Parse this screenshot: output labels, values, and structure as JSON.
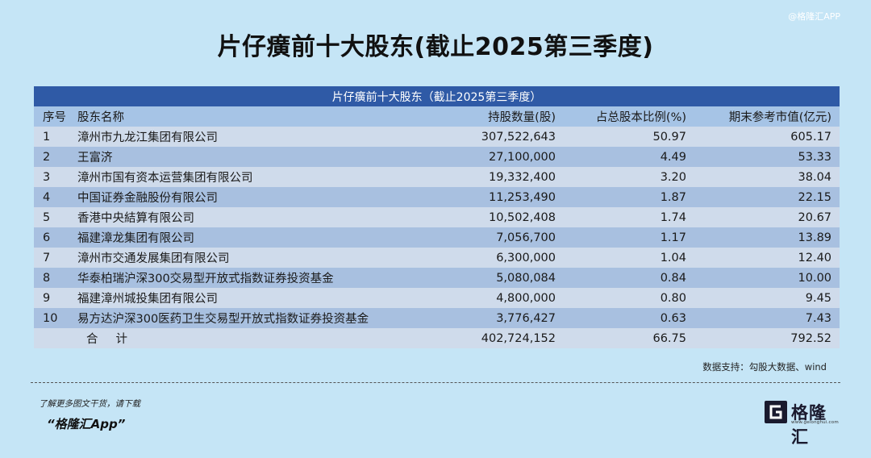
{
  "watermark": "@格隆汇APP",
  "title": "片仔癀前十大股东(截止2025第三季度)",
  "table": {
    "caption": "片仔癀前十大股东（截止2025第三季度）",
    "headers": [
      "序号",
      "股东名称",
      "持股数量(股)",
      "占总股本比例(%)",
      "期末参考市值(亿元)"
    ],
    "rows": [
      {
        "idx": "1",
        "name": "漳州市九龙江集团有限公司",
        "shares": "307,522,643",
        "ratio": "50.97",
        "value": "605.17"
      },
      {
        "idx": "2",
        "name": "王富济",
        "shares": "27,100,000",
        "ratio": "4.49",
        "value": "53.33"
      },
      {
        "idx": "3",
        "name": "漳州市国有资本运营集团有限公司",
        "shares": "19,332,400",
        "ratio": "3.20",
        "value": "38.04"
      },
      {
        "idx": "4",
        "name": "中国证券金融股份有限公司",
        "shares": "11,253,490",
        "ratio": "1.87",
        "value": "22.15"
      },
      {
        "idx": "5",
        "name": "香港中央結算有限公司",
        "shares": "10,502,408",
        "ratio": "1.74",
        "value": "20.67"
      },
      {
        "idx": "6",
        "name": "福建漳龙集团有限公司",
        "shares": "7,056,700",
        "ratio": "1.17",
        "value": "13.89"
      },
      {
        "idx": "7",
        "name": "漳州市交通发展集团有限公司",
        "shares": "6,300,000",
        "ratio": "1.04",
        "value": "12.40"
      },
      {
        "idx": "8",
        "name": "华泰柏瑞沪深300交易型开放式指数证券投资基金",
        "shares": "5,080,084",
        "ratio": "0.84",
        "value": "10.00"
      },
      {
        "idx": "9",
        "name": "福建漳州城投集团有限公司",
        "shares": "4,800,000",
        "ratio": "0.80",
        "value": "9.45"
      },
      {
        "idx": "10",
        "name": "易方达沪深300医药卫生交易型开放式指数证券投资基金",
        "shares": "3,776,427",
        "ratio": "0.63",
        "value": "7.43"
      }
    ],
    "total": {
      "label": "合计",
      "shares": "402,724,152",
      "ratio": "66.75",
      "value": "792.52"
    }
  },
  "source": "数据支持：勾股大数据、wind",
  "footer": {
    "promo": "了解更多图文干货，请下载",
    "app": "“格隆汇App”",
    "logo_text": "格隆汇",
    "logo_url": "www.gelonghui.com",
    "logo_icon": "gelonghui-g-logo-icon"
  },
  "colors": {
    "background": "#c5e5f6",
    "caption_bg": "#2f5aa6",
    "header_bg": "#a6c4e6",
    "row_light": "#cfdbeb",
    "row_dark": "#a8c0e0"
  }
}
